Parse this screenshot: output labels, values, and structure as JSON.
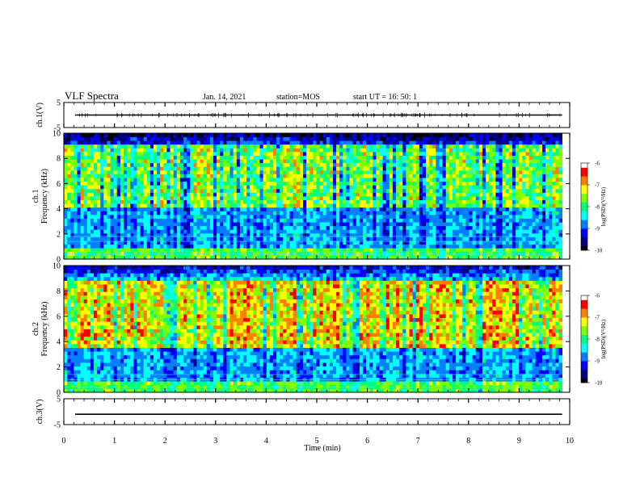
{
  "header": {
    "title": "VLF Spectra",
    "date": "Jan. 14, 2021",
    "station": "station=MOS",
    "start_time": "start  UT =   16: 50: 1"
  },
  "chart_data": {
    "type": "heatmap",
    "x_axis": {
      "label": "Time  (min)",
      "range": [
        0,
        10
      ],
      "ticks": [
        "0",
        "1",
        "2",
        "3",
        "4",
        "5",
        "6",
        "7",
        "8",
        "9",
        "10"
      ],
      "data_end": 9.85
    },
    "panels": [
      {
        "name": "ch1-waveform",
        "ylabel": "ch.1(V)",
        "ylim": [
          -5,
          5
        ],
        "y_ticks": [
          "5",
          "-5"
        ],
        "trace_level": 0
      },
      {
        "name": "ch1-spectrogram",
        "ylabel": "ch.1\nFrequency (kHz)",
        "ylim": [
          0,
          10
        ],
        "y_ticks": [
          "0",
          "2",
          "4",
          "6",
          "8",
          "10"
        ],
        "band_low_khz": 4.0,
        "band_high_khz": 9.0,
        "peak_level": -7.3,
        "line_freqs_khz": [
          0.4,
          0.6,
          1.4,
          1.8
        ],
        "colorbar": {
          "label": "log(PSD)(V²/Hz)",
          "range": [
            -10,
            -6
          ],
          "ticks": [
            "-6",
            "-7",
            "-8",
            "-9",
            "-10"
          ]
        }
      },
      {
        "name": "ch2-spectrogram",
        "ylabel": "ch.2\nFrequency (kHz)",
        "ylim": [
          0,
          10
        ],
        "y_ticks": [
          "0",
          "2",
          "4",
          "6",
          "8",
          "10"
        ],
        "band_low_khz": 3.5,
        "band_high_khz": 8.8,
        "peak_level": -6.8,
        "line_freqs_khz": [
          0.4,
          1.0,
          1.4
        ],
        "colorbar": {
          "label": "log(PSD)(V²/Hz)",
          "range": [
            -10,
            -6
          ],
          "ticks": [
            "-6",
            "-7",
            "-8",
            "-9",
            "-10"
          ]
        }
      },
      {
        "name": "ch3-waveform",
        "ylabel": "ch.3(V)",
        "ylim": [
          -5,
          5
        ],
        "y_ticks": [
          "5",
          "-5"
        ],
        "trace_level": -1
      }
    ],
    "colormap": [
      "#000000",
      "#000080",
      "#0000ff",
      "#0080ff",
      "#00ffff",
      "#00ff80",
      "#80ff00",
      "#ffff00",
      "#ff8000",
      "#ff0000",
      "#ffffff"
    ]
  }
}
